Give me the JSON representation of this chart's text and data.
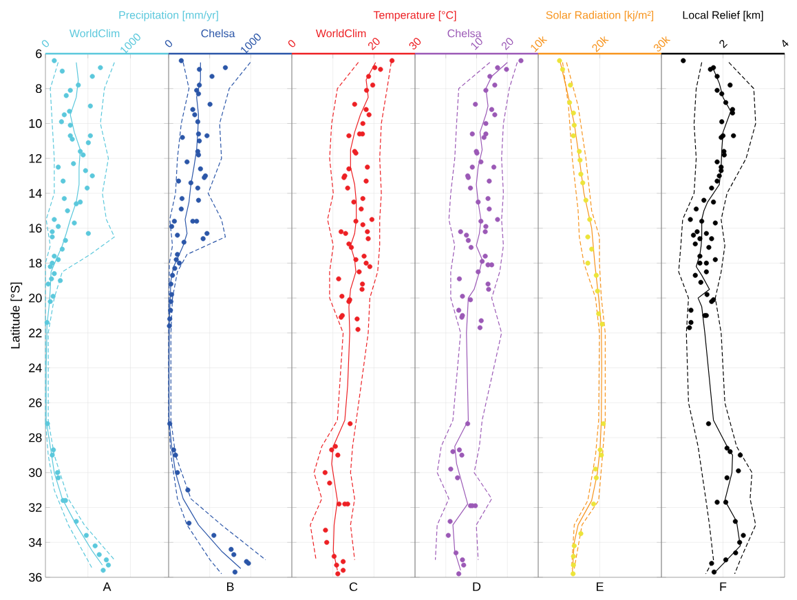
{
  "chart_data": [
    {
      "type": "line",
      "title": "Precipitation [mm/yr]",
      "subtitle": "WorldClim",
      "xlabel": "A",
      "ylabel": "Latitude [°S]",
      "xlim": [
        0,
        1450
      ],
      "xticks": [
        0,
        {
          "value": 500,
          "label": null
        },
        1000
      ],
      "ylim": [
        36,
        6
      ],
      "yticks": [
        6,
        8,
        10,
        12,
        14,
        16,
        18,
        20,
        22,
        24,
        26,
        28,
        30,
        32,
        34,
        36
      ],
      "grid": true,
      "series": [
        {
          "type": "line",
          "color": "#5bc8dc",
          "line_style": "solid",
          "marker": "none",
          "x": [
            363,
            387,
            363,
            293,
            340,
            410,
            396,
            396,
            363,
            293,
            245,
            198,
            127,
            66,
            57,
            42,
            19,
            9,
            9,
            57,
            104,
            198,
            363,
            552,
            670
          ],
          "values": [
            6.5,
            7.5,
            8.5,
            9.5,
            10.5,
            11.5,
            12.5,
            13.5,
            14.5,
            15.5,
            16.3,
            17,
            17.8,
            18.5,
            19.5,
            20.5,
            21.5,
            24,
            27,
            28.5,
            30,
            31.5,
            33,
            34.5,
            35.3
          ]
        },
        {
          "type": "line",
          "color": "#5bc8dc",
          "line_style": "dashed",
          "marker": "none",
          "x": [
            150,
            57,
            80,
            104,
            104,
            9,
            57,
            0,
            0,
            33,
            104,
            269,
            552
          ],
          "values": [
            6.5,
            8,
            10,
            12,
            14,
            15.5,
            17,
            18,
            27,
            29,
            31,
            33,
            35.5
          ]
        },
        {
          "type": "line",
          "color": "#5bc8dc",
          "line_style": "dashed",
          "marker": "none",
          "x": [
            812,
            694,
            647,
            741,
            670,
            717,
            812,
            529,
            198,
            104,
            33,
            33,
            104,
            269,
            458,
            812
          ],
          "values": [
            6.5,
            8,
            10,
            12,
            14,
            15.5,
            16.5,
            17.5,
            18.5,
            20,
            22,
            27,
            29,
            31.5,
            33,
            35
          ]
        },
        {
          "type": "scatter",
          "color": "#5bc8dc",
          "marker": "circle",
          "x": [
            104,
            647,
            198,
            552,
            387,
            293,
            245,
            529,
            283,
            222,
            189,
            293,
            293,
            529,
            316,
            505,
            410,
            444,
            330,
            151,
            472,
            552,
            208,
            491,
            222,
            410,
            363,
            260,
            104,
            340,
            151,
            80,
            505,
            80,
            236,
            198,
            104,
            151,
            80,
            57,
            104,
            71,
            175,
            33,
            90,
            57,
            19,
            24,
            94,
            80,
            142,
            151,
            208,
            236,
            363,
            481,
            585,
            633,
            717,
            741,
            680
          ],
          "values": [
            6.4,
            6.8,
            7.0,
            7.3,
            7.8,
            8.1,
            8.4,
            9.0,
            9.3,
            9.5,
            9.9,
            10.1,
            10.7,
            10.7,
            10.9,
            11.1,
            11.6,
            11.8,
            12.3,
            12.5,
            12.7,
            13.0,
            13.3,
            13.7,
            14.3,
            14.5,
            14.6,
            15.0,
            15.5,
            15.7,
            15.9,
            16.2,
            16.3,
            16.5,
            16.7,
            17.2,
            17.6,
            17.8,
            18.0,
            18.2,
            18.6,
            18.9,
            19.0,
            19.2,
            19.9,
            20.2,
            21.4,
            27.2,
            28.7,
            29.0,
            30.0,
            30.3,
            31.6,
            31.6,
            32.8,
            33.6,
            34.2,
            34.7,
            35.0,
            35.3,
            35.6
          ]
        }
      ]
    },
    {
      "type": "line",
      "subtitle": "Chelsa",
      "xlabel": "B",
      "xlim": [
        0,
        1500
      ],
      "xticks": [
        0,
        {
          "value": 500,
          "label": null
        },
        1000
      ],
      "ylim": [
        36,
        6
      ],
      "yticks": [
        6,
        8,
        10,
        12,
        14,
        16,
        18,
        20,
        22,
        24,
        26,
        28,
        30,
        32,
        34,
        36
      ],
      "grid": true,
      "tick_labels": "x",
      "series": [
        {
          "type": "line",
          "color": "#2b56a8",
          "line_style": "solid",
          "marker": "none",
          "x": [
            388,
            388,
            341,
            364,
            355,
            341,
            308,
            271,
            248,
            201,
            224,
            177,
            121,
            61,
            28,
            19,
            9,
            5,
            5,
            37,
            84,
            177,
            364,
            644,
            878
          ],
          "values": [
            6.5,
            7.5,
            8.5,
            9.5,
            10.5,
            11.5,
            12.5,
            13.5,
            14.5,
            15.5,
            16.3,
            17,
            17.6,
            18.2,
            19,
            20,
            21.5,
            24,
            27,
            28.5,
            30,
            31.5,
            33,
            34.5,
            35.5
          ]
        },
        {
          "type": "line",
          "color": "#2b56a8",
          "line_style": "dashed",
          "marker": "none",
          "x": [
            177,
            248,
            154,
            107,
            84,
            14,
            47,
            9,
            0,
            0,
            28,
            107,
            224,
            504,
            644
          ],
          "values": [
            6.5,
            8,
            10,
            12,
            14,
            15.5,
            17,
            18,
            22,
            27,
            29,
            31.5,
            33,
            35,
            35.8
          ]
        },
        {
          "type": "line",
          "color": "#2b56a8",
          "line_style": "dashed",
          "marker": "none",
          "x": [
            995,
            738,
            621,
            644,
            481,
            644,
            691,
            224,
            107,
            47,
            28,
            28,
            84,
            271,
            644,
            1181
          ],
          "values": [
            6.5,
            8,
            10,
            12,
            14,
            15.5,
            16.5,
            17.5,
            18.5,
            20,
            22,
            27,
            29,
            31.5,
            33,
            35
          ]
        },
        {
          "type": "scatter",
          "color": "#2b56a8",
          "marker": "circle",
          "x": [
            154,
            691,
            374,
            528,
            374,
            341,
            364,
            504,
            294,
            318,
            355,
            364,
            467,
            168,
            374,
            355,
            364,
            224,
            388,
            448,
            434,
            121,
            271,
            355,
            163,
            364,
            154,
            70,
            294,
            341,
            37,
            467,
            107,
            420,
            187,
            107,
            93,
            131,
            75,
            47,
            28,
            37,
            28,
            23,
            14,
            9,
            14,
            61,
            84,
            107,
            234,
            248,
            551,
            761,
            794,
            948,
            972,
            808
          ],
          "values": [
            6.4,
            6.8,
            6.9,
            7.3,
            7.8,
            8.1,
            8.3,
            8.9,
            9.2,
            9.5,
            9.9,
            10.6,
            10.7,
            10.8,
            11.0,
            11.6,
            11.8,
            12.2,
            12.6,
            13.0,
            13.1,
            13.3,
            13.4,
            13.7,
            14.3,
            14.4,
            14.9,
            15.6,
            15.6,
            15.6,
            15.9,
            16.3,
            16.4,
            16.6,
            16.8,
            17.5,
            17.8,
            18.0,
            18.3,
            18.7,
            19.2,
            19.8,
            20.2,
            20.7,
            21.2,
            21.6,
            27.2,
            28.7,
            29.0,
            30.0,
            31.0,
            32.9,
            33.6,
            34.4,
            34.7,
            35.1,
            35.2,
            35.7
          ]
        }
      ]
    },
    {
      "type": "line",
      "title": "Temperature [°C]",
      "subtitle": "WorldClim",
      "xlabel": "C",
      "xlim": [
        0,
        30
      ],
      "xticks": [
        0,
        {
          "value": 10,
          "label": null
        },
        20,
        30
      ],
      "ylim": [
        36,
        6
      ],
      "yticks": [
        6,
        8,
        10,
        12,
        14,
        16,
        18,
        20,
        22,
        24,
        26,
        28,
        30,
        32,
        34,
        36
      ],
      "grid": true,
      "tick_labels": "x",
      "series": [
        {
          "type": "line",
          "color": "#ed2024",
          "line_style": "solid",
          "marker": "none",
          "x": [
            20.4,
            18.1,
            18.6,
            16.7,
            15.3,
            14.3,
            14.3,
            15.3,
            15.7,
            15.7,
            15.3,
            14.3,
            15.3,
            15.6,
            14.3,
            13.9,
            14.1,
            13.6,
            12.9,
            10.1,
            9.7,
            11.1,
            10.3,
            10.1,
            11.1
          ],
          "values": [
            6.5,
            7.5,
            8.5,
            9.5,
            10.5,
            11.5,
            12.5,
            13.5,
            14.5,
            15.5,
            16.3,
            17,
            17.8,
            18.5,
            19.5,
            20.5,
            22,
            25,
            27,
            28.5,
            29.5,
            31.6,
            33,
            34.5,
            35.6
          ]
        },
        {
          "type": "line",
          "color": "#ed2024",
          "line_style": "dashed",
          "marker": "none",
          "x": [
            16.2,
            11.1,
            9.7,
            9.2,
            10.1,
            8.7,
            10.1,
            9.2,
            9.2,
            12.5,
            11.1,
            7.3,
            5.4,
            7.3,
            4.5,
            5.9
          ],
          "values": [
            6.5,
            8,
            10,
            12,
            14,
            15.5,
            17,
            18.5,
            20,
            22,
            27,
            28.5,
            30,
            31.5,
            33,
            35
          ]
        },
        {
          "type": "line",
          "color": "#ed2024",
          "line_style": "dashed",
          "marker": "none",
          "x": [
            24.2,
            23.2,
            21.8,
            21.4,
            21.8,
            21.4,
            21.4,
            20.9,
            19.0,
            18.6,
            15.7,
            14.8,
            14.3,
            15.3,
            14.3,
            15.3
          ],
          "values": [
            6.5,
            8,
            10,
            12,
            14,
            15.5,
            17,
            18.5,
            20,
            22,
            27,
            28.5,
            30,
            31.5,
            33,
            35
          ]
        },
        {
          "type": "scatter",
          "color": "#ed2024",
          "marker": "circle",
          "x": [
            24.4,
            20.2,
            21.6,
            18.7,
            19.7,
            18.2,
            15.3,
            18.1,
            18.8,
            17.3,
            16.5,
            13.9,
            17.2,
            15.3,
            15.6,
            18.4,
            13.9,
            12.9,
            12.7,
            18.1,
            13.6,
            15.1,
            17.3,
            16.9,
            15.6,
            19.5,
            17.3,
            18.4,
            12.0,
            13.1,
            18.6,
            13.9,
            14.5,
            15.6,
            17.6,
            18.1,
            19.0,
            16.4,
            11.4,
            17.2,
            17.1,
            12.2,
            13.9,
            14.1,
            12.3,
            12.0,
            15.9,
            16.1,
            14.2,
            9.7,
            10.6,
            11.2,
            8.1,
            9.2,
            11.5,
            12.9,
            13.6,
            8.2,
            8.5,
            10.3,
            10.9,
            12.5,
            12.5,
            11.2
          ],
          "values": [
            6.4,
            6.8,
            6.9,
            7.3,
            7.8,
            8.1,
            8.9,
            9.2,
            9.5,
            10.0,
            10.6,
            10.7,
            10.6,
            11.6,
            11.7,
            12.5,
            12.6,
            13.0,
            13.1,
            13.3,
            13.7,
            14.5,
            14.3,
            14.9,
            15.6,
            15.5,
            15.8,
            16.2,
            16.2,
            16.3,
            16.6,
            16.9,
            17.1,
            17.8,
            17.6,
            18.0,
            18.2,
            18.5,
            18.9,
            19.2,
            19.5,
            19.9,
            20.2,
            20.1,
            21.0,
            21.1,
            21.2,
            21.8,
            27.2,
            28.7,
            28.5,
            29.0,
            30.0,
            30.6,
            31.8,
            31.8,
            31.8,
            33.3,
            34.0,
            34.8,
            35.3,
            35.6,
            35.1,
            35.8
          ]
        }
      ]
    },
    {
      "type": "line",
      "subtitle": "Chelsa",
      "xlabel": "D",
      "xlim": [
        -10,
        30
      ],
      "xticks": [
        {
          "value": 0,
          "label": null
        },
        10,
        20
      ],
      "ylim": [
        36,
        6
      ],
      "yticks": [
        6,
        8,
        10,
        12,
        14,
        16,
        18,
        20,
        22,
        24,
        26,
        28,
        30,
        32,
        34,
        36
      ],
      "grid": true,
      "tick_labels": "x",
      "series": [
        {
          "type": "line",
          "color": "#9b59b6",
          "line_style": "solid",
          "marker": "none",
          "x": [
            20.0,
            14.9,
            13.0,
            13.7,
            13.0,
            11.1,
            11.8,
            10.5,
            9.9,
            10.5,
            11.4,
            10.9,
            9.9,
            11.8,
            10.9,
            9.2,
            7.3,
            6.7,
            7.3,
            2.9,
            3.5,
            7.1,
            2.3,
            2.9,
            4.8
          ],
          "values": [
            6.5,
            7.3,
            8,
            9,
            9.5,
            10.5,
            11.5,
            12.5,
            13.5,
            14.5,
            15.5,
            16.3,
            17,
            17.8,
            18.5,
            19.5,
            20,
            22,
            27,
            28.5,
            29.5,
            31.8,
            33,
            34.5,
            35.6
          ]
        },
        {
          "type": "line",
          "color": "#9b59b6",
          "line_style": "dashed",
          "marker": "none",
          "x": [
            14.3,
            4.2,
            3.5,
            2.9,
            1.6,
            1.0,
            2.9,
            1.6,
            1.6,
            4.8,
            2.3,
            -1.5,
            -2.8,
            1.0,
            -2.8,
            -3.4
          ],
          "values": [
            6.5,
            8,
            10,
            12,
            14,
            15.5,
            17,
            18.5,
            20,
            22,
            27,
            28.5,
            30,
            31.5,
            33,
            35
          ]
        },
        {
          "type": "line",
          "color": "#9b59b6",
          "line_style": "dashed",
          "marker": "none",
          "x": [
            23.2,
            20.6,
            18.7,
            18.1,
            18.7,
            18.1,
            18.7,
            17.5,
            14.9,
            18.1,
            11.8,
            10.9,
            9.2,
            14.9,
            9.9,
            10.5
          ],
          "values": [
            6.5,
            8,
            10,
            12,
            14,
            15.5,
            17,
            18.5,
            20,
            22,
            27,
            28.5,
            30,
            31.5,
            33,
            35
          ]
        },
        {
          "type": "scatter",
          "color": "#9b59b6",
          "marker": "circle",
          "x": [
            24.4,
            16.8,
            19.7,
            14.3,
            15.9,
            13.0,
            9.6,
            14.9,
            15.9,
            13.0,
            8.6,
            13.0,
            12.4,
            9.9,
            10.1,
            11.4,
            15.6,
            8.6,
            7.1,
            7.3,
            14.1,
            8.0,
            10.5,
            13.7,
            14.1,
            16.8,
            11.4,
            13.0,
            12.8,
            4.8,
            6.7,
            7.3,
            8.2,
            12.8,
            11.8,
            13.7,
            14.9,
            10.5,
            4.4,
            13.7,
            13.9,
            5.4,
            8.0,
            4.2,
            5.4,
            5.2,
            11.5,
            11.1,
            7.1,
            4.4,
            2.3,
            5.2,
            1.6,
            3.8,
            8.0,
            8.6,
            9.6,
            1.4,
            0.8,
            3.3,
            5.8,
            5.4,
            4.2
          ],
          "values": [
            6.4,
            6.8,
            6.9,
            7.3,
            7.8,
            8.1,
            8.9,
            9.2,
            9.5,
            10.0,
            10.6,
            10.6,
            10.8,
            11.6,
            11.7,
            12.2,
            12.5,
            12.5,
            13.0,
            13.1,
            13.3,
            13.7,
            14.5,
            14.3,
            14.9,
            15.5,
            15.6,
            15.9,
            16.2,
            16.2,
            16.4,
            16.7,
            17.1,
            17.6,
            17.9,
            18.1,
            18.1,
            18.5,
            18.9,
            19.2,
            19.5,
            19.9,
            20.1,
            20.7,
            21.0,
            21.1,
            21.3,
            21.7,
            27.2,
            28.7,
            28.8,
            29.0,
            29.8,
            30.3,
            31.9,
            31.9,
            31.9,
            32.8,
            33.6,
            34.6,
            35.3,
            35.0,
            35.8
          ]
        }
      ]
    },
    {
      "type": "line",
      "title": "Solar Radiation [kj/m²]",
      "xlabel": "E",
      "xlim": [
        10000,
        30000
      ],
      "xticks": [
        {
          "value": 10000,
          "label": "10k"
        },
        {
          "value": 20000,
          "label": "20k"
        },
        {
          "value": 30000,
          "label": "30k"
        }
      ],
      "ylim": [
        36,
        6
      ],
      "yticks": [
        6,
        8,
        10,
        12,
        14,
        16,
        18,
        20,
        22,
        24,
        26,
        28,
        30,
        32,
        34,
        36
      ],
      "grid": true,
      "tick_labels": "x",
      "series": [
        {
          "type": "line",
          "color": "#f7941d",
          "line_style": "solid",
          "marker": "none",
          "x": [
            13520,
            14590,
            15850,
            16670,
            17420,
            18680,
            19180,
            19810,
            20250,
            20310,
            20250,
            20060,
            19620,
            18680,
            16480,
            15850,
            15530
          ],
          "values": [
            6.4,
            8,
            10,
            12,
            14,
            16,
            18,
            20,
            21.6,
            24,
            27,
            28.5,
            30,
            31.6,
            33,
            34,
            35.8
          ]
        },
        {
          "type": "line",
          "color": "#f7941d",
          "line_style": "dashed",
          "marker": "none",
          "x": [
            13960,
            14910,
            15530,
            16480,
            16670,
            17420,
            19310,
            19940,
            19810,
            19310,
            18050,
            15850,
            15410
          ],
          "values": [
            6.5,
            9,
            12,
            15,
            16.5,
            18,
            20,
            22,
            27,
            29,
            31.6,
            33,
            35.5
          ]
        },
        {
          "type": "line",
          "color": "#f7941d",
          "line_style": "dashed",
          "marker": "none",
          "x": [
            14590,
            16480,
            17740,
            18680,
            19940,
            19940,
            20250,
            20880,
            20880,
            20440,
            19810,
            17110,
            15850
          ],
          "values": [
            6.5,
            9,
            12,
            15,
            16.5,
            18,
            20,
            22,
            27,
            29,
            31.6,
            33,
            35.5
          ]
        },
        {
          "type": "scatter",
          "color": "#ece43a",
          "marker": "circle",
          "x": [
            13460,
            13960,
            15220,
            15090,
            15720,
            15850,
            15720,
            16670,
            16790,
            16920,
            17230,
            17740,
            18360,
            18050,
            18680,
            18050,
            19430,
            19620,
            19810,
            20380,
            20570,
            20060,
            20250,
            19310,
            19430,
            18990,
            16920,
            15850,
            15720,
            15720,
            15660
          ],
          "values": [
            6.4,
            6.9,
            7.8,
            8.8,
            9.4,
            10.1,
            10.7,
            11.6,
            12.1,
            12.9,
            13.4,
            14.4,
            15.5,
            16.5,
            17.2,
            18.0,
            18.7,
            19.6,
            20.9,
            21.5,
            27.2,
            28.7,
            29.0,
            29.8,
            30.3,
            31.8,
            33.5,
            34.2,
            34.8,
            35.3,
            35.8
          ]
        }
      ]
    },
    {
      "type": "line",
      "title": "Local Relief [km]",
      "xlabel": "F",
      "xlim": [
        0,
        4
      ],
      "xticks": [
        2,
        4
      ],
      "ylim": [
        36,
        6
      ],
      "yticks": [
        6,
        8,
        10,
        12,
        14,
        16,
        18,
        20,
        22,
        24,
        26,
        28,
        30,
        32,
        34,
        36
      ],
      "grid": true,
      "tick_labels": "x",
      "series": [
        {
          "type": "line",
          "color": "#000000",
          "line_style": "solid",
          "marker": "none",
          "x": [
            1.69,
            1.88,
            2.0,
            2.25,
            2.0,
            1.96,
            1.94,
            1.88,
            1.5,
            1.38,
            1.31,
            1.31,
            1.29,
            1.25,
            1.13,
            1.31,
            1.56,
            1.19,
            1.31,
            1.41,
            1.69,
            2.19,
            2.31,
            2.29,
            2.06,
            2.44,
            2.56,
            2.13,
            1.69
          ],
          "values": [
            6.9,
            7.7,
            8.5,
            9.3,
            10.5,
            11.5,
            12.5,
            13.5,
            14.5,
            15,
            15.5,
            16.5,
            17,
            17.5,
            18.2,
            18.7,
            19.5,
            20,
            20.5,
            22,
            27,
            28.7,
            29,
            30,
            31.6,
            32.8,
            34.2,
            35,
            35.8
          ]
        },
        {
          "type": "line",
          "color": "#000000",
          "line_style": "dashed",
          "marker": "none",
          "x": [
            1.31,
            1.13,
            1.06,
            1.13,
            1.06,
            0.69,
            0.63,
            0.56,
            0.88,
            0.81,
            0.88,
            1.19,
            1.44,
            1.56,
            1.69,
            1.44
          ],
          "values": [
            6.5,
            8,
            10,
            12,
            14,
            15.5,
            17,
            18.5,
            20,
            22,
            26,
            28.5,
            31.5,
            33,
            35,
            35.8
          ]
        },
        {
          "type": "line",
          "color": "#000000",
          "line_style": "dashed",
          "marker": "none",
          "x": [
            2.19,
            3.0,
            3.06,
            2.75,
            2.13,
            1.94,
            2.06,
            1.94,
            1.75,
            1.94,
            2.06,
            2.44,
            2.94,
            2.88,
            3.06,
            2.56,
            2.38
          ],
          "values": [
            6.5,
            8,
            10,
            12,
            14,
            15.5,
            17,
            18.5,
            20,
            22,
            26,
            28.5,
            30,
            31.5,
            33,
            35,
            35.8
          ]
        },
        {
          "type": "scatter",
          "color": "#000000",
          "marker": "circle",
          "x": [
            0.71,
            1.69,
            1.59,
            1.81,
            2.23,
            1.81,
            1.96,
            2.09,
            2.31,
            2.31,
            1.96,
            2.34,
            2.0,
            1.94,
            2.03,
            2.04,
            1.81,
            1.94,
            1.94,
            1.88,
            1.81,
            1.63,
            1.38,
            1.69,
            1.13,
            0.94,
            1.31,
            1.75,
            1.16,
            1.46,
            1.04,
            1.63,
            1.25,
            1.1,
            1.54,
            1.25,
            1.75,
            1.46,
            1.25,
            1.46,
            1.1,
            1.28,
            1.48,
            1.69,
            1.63,
            0.96,
            1.41,
            1.46,
            0.96,
            0.91,
            1.53,
            2.13,
            2.23,
            2.56,
            2.5,
            2.13,
            1.81,
            2.09,
            2.4,
            2.66,
            2.54,
            2.41,
            2.09,
            1.63,
            1.71
          ],
          "values": [
            6.4,
            6.8,
            6.9,
            7.3,
            7.8,
            8.1,
            8.3,
            8.8,
            9.2,
            9.4,
            9.9,
            10.7,
            10.7,
            10.8,
            11.6,
            11.8,
            12.2,
            12.5,
            12.7,
            13.0,
            13.3,
            13.7,
            14.4,
            14.5,
            14.9,
            15.5,
            15.6,
            15.7,
            16.2,
            16.3,
            16.4,
            16.6,
            16.6,
            16.9,
            17.1,
            17.6,
            17.8,
            18.0,
            18.0,
            18.5,
            18.7,
            19.1,
            19.8,
            20.1,
            20.2,
            20.7,
            21.0,
            21.0,
            21.4,
            21.7,
            27.2,
            28.6,
            28.8,
            29.0,
            29.9,
            30.3,
            31.7,
            31.7,
            32.8,
            33.6,
            34.0,
            34.6,
            35.0,
            35.2,
            35.7
          ]
        }
      ]
    }
  ]
}
